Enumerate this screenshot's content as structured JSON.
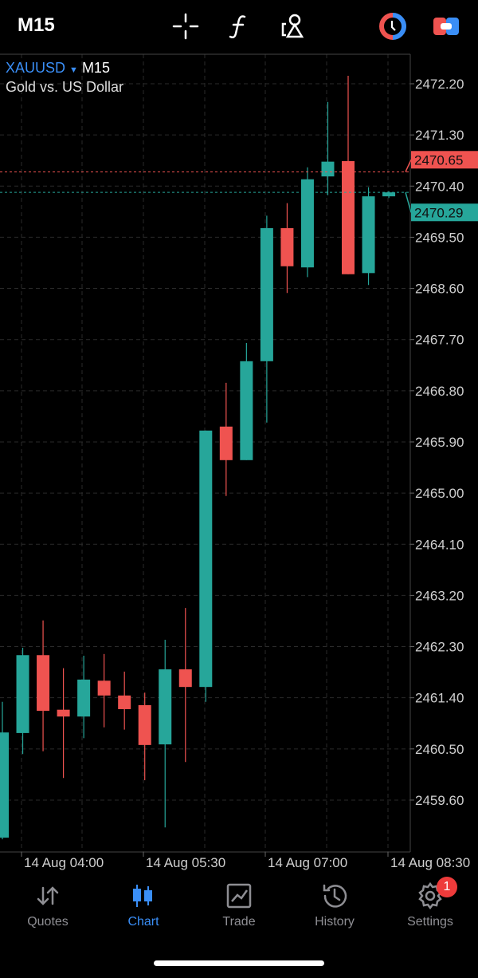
{
  "topbar": {
    "timeframe": "M15",
    "icons": [
      "crosshair-icon",
      "function-icon",
      "objects-icon",
      "one-click-trading-icon",
      "trade-panel-icon"
    ]
  },
  "chart_info": {
    "symbol": "XAUUSD",
    "timeframe": "M15",
    "description": "Gold vs. US Dollar"
  },
  "colors": {
    "bull": "#26a69a",
    "bear": "#ef5350",
    "ask_line": "#ef5350",
    "bid_line": "#26a69a",
    "grid": "#2a2a2a",
    "axis_text": "#cfcfcf"
  },
  "price_axis": [
    "2472.20",
    "2471.30",
    "2470.40",
    "2469.50",
    "2468.60",
    "2467.70",
    "2466.80",
    "2465.90",
    "2465.00",
    "2464.10",
    "2463.20",
    "2462.30",
    "2461.40",
    "2460.50",
    "2459.60"
  ],
  "ask": {
    "label": "2470.65",
    "value": 2470.65
  },
  "bid": {
    "label": "2470.29",
    "value": 2470.29
  },
  "time_axis": [
    "14 Aug 04:00",
    "14 Aug 05:30",
    "14 Aug 07:00",
    "14 Aug 08:30"
  ],
  "chart_data": {
    "type": "candlestick",
    "symbol": "XAUUSD",
    "timeframe": "M15",
    "ylim": [
      2458.75,
      2472.65
    ],
    "candles": [
      [
        2458.94,
        2461.33,
        2458.91,
        2460.79
      ],
      [
        2460.78,
        2462.28,
        2460.41,
        2462.15
      ],
      [
        2462.15,
        2462.76,
        2460.46,
        2461.17
      ],
      [
        2461.19,
        2461.92,
        2459.99,
        2461.07
      ],
      [
        2461.07,
        2462.14,
        2460.69,
        2461.72
      ],
      [
        2461.7,
        2462.17,
        2460.88,
        2461.44
      ],
      [
        2461.44,
        2461.86,
        2460.84,
        2461.2
      ],
      [
        2461.27,
        2461.49,
        2459.95,
        2460.57
      ],
      [
        2460.58,
        2462.42,
        2459.12,
        2461.9
      ],
      [
        2461.9,
        2462.98,
        2460.27,
        2461.59
      ],
      [
        2461.59,
        2466.1,
        2461.33,
        2466.1
      ],
      [
        2466.17,
        2466.94,
        2464.95,
        2465.58
      ],
      [
        2465.58,
        2467.64,
        2465.58,
        2467.32
      ],
      [
        2467.32,
        2469.88,
        2466.24,
        2469.66
      ],
      [
        2469.66,
        2470.1,
        2468.52,
        2468.99
      ],
      [
        2468.97,
        2470.73,
        2468.8,
        2470.52
      ],
      [
        2470.57,
        2471.88,
        2470.24,
        2470.83
      ],
      [
        2470.84,
        2472.34,
        2468.85,
        2468.85
      ],
      [
        2468.87,
        2470.38,
        2468.66,
        2470.22
      ],
      [
        2470.22,
        2470.31,
        2470.19,
        2470.29
      ]
    ]
  },
  "nav": [
    {
      "label": "Quotes",
      "icon": "quotes-icon"
    },
    {
      "label": "Chart",
      "icon": "chart-icon",
      "active": true
    },
    {
      "label": "Trade",
      "icon": "trade-icon"
    },
    {
      "label": "History",
      "icon": "history-icon"
    },
    {
      "label": "Settings",
      "icon": "settings-icon",
      "badge": "1"
    }
  ]
}
